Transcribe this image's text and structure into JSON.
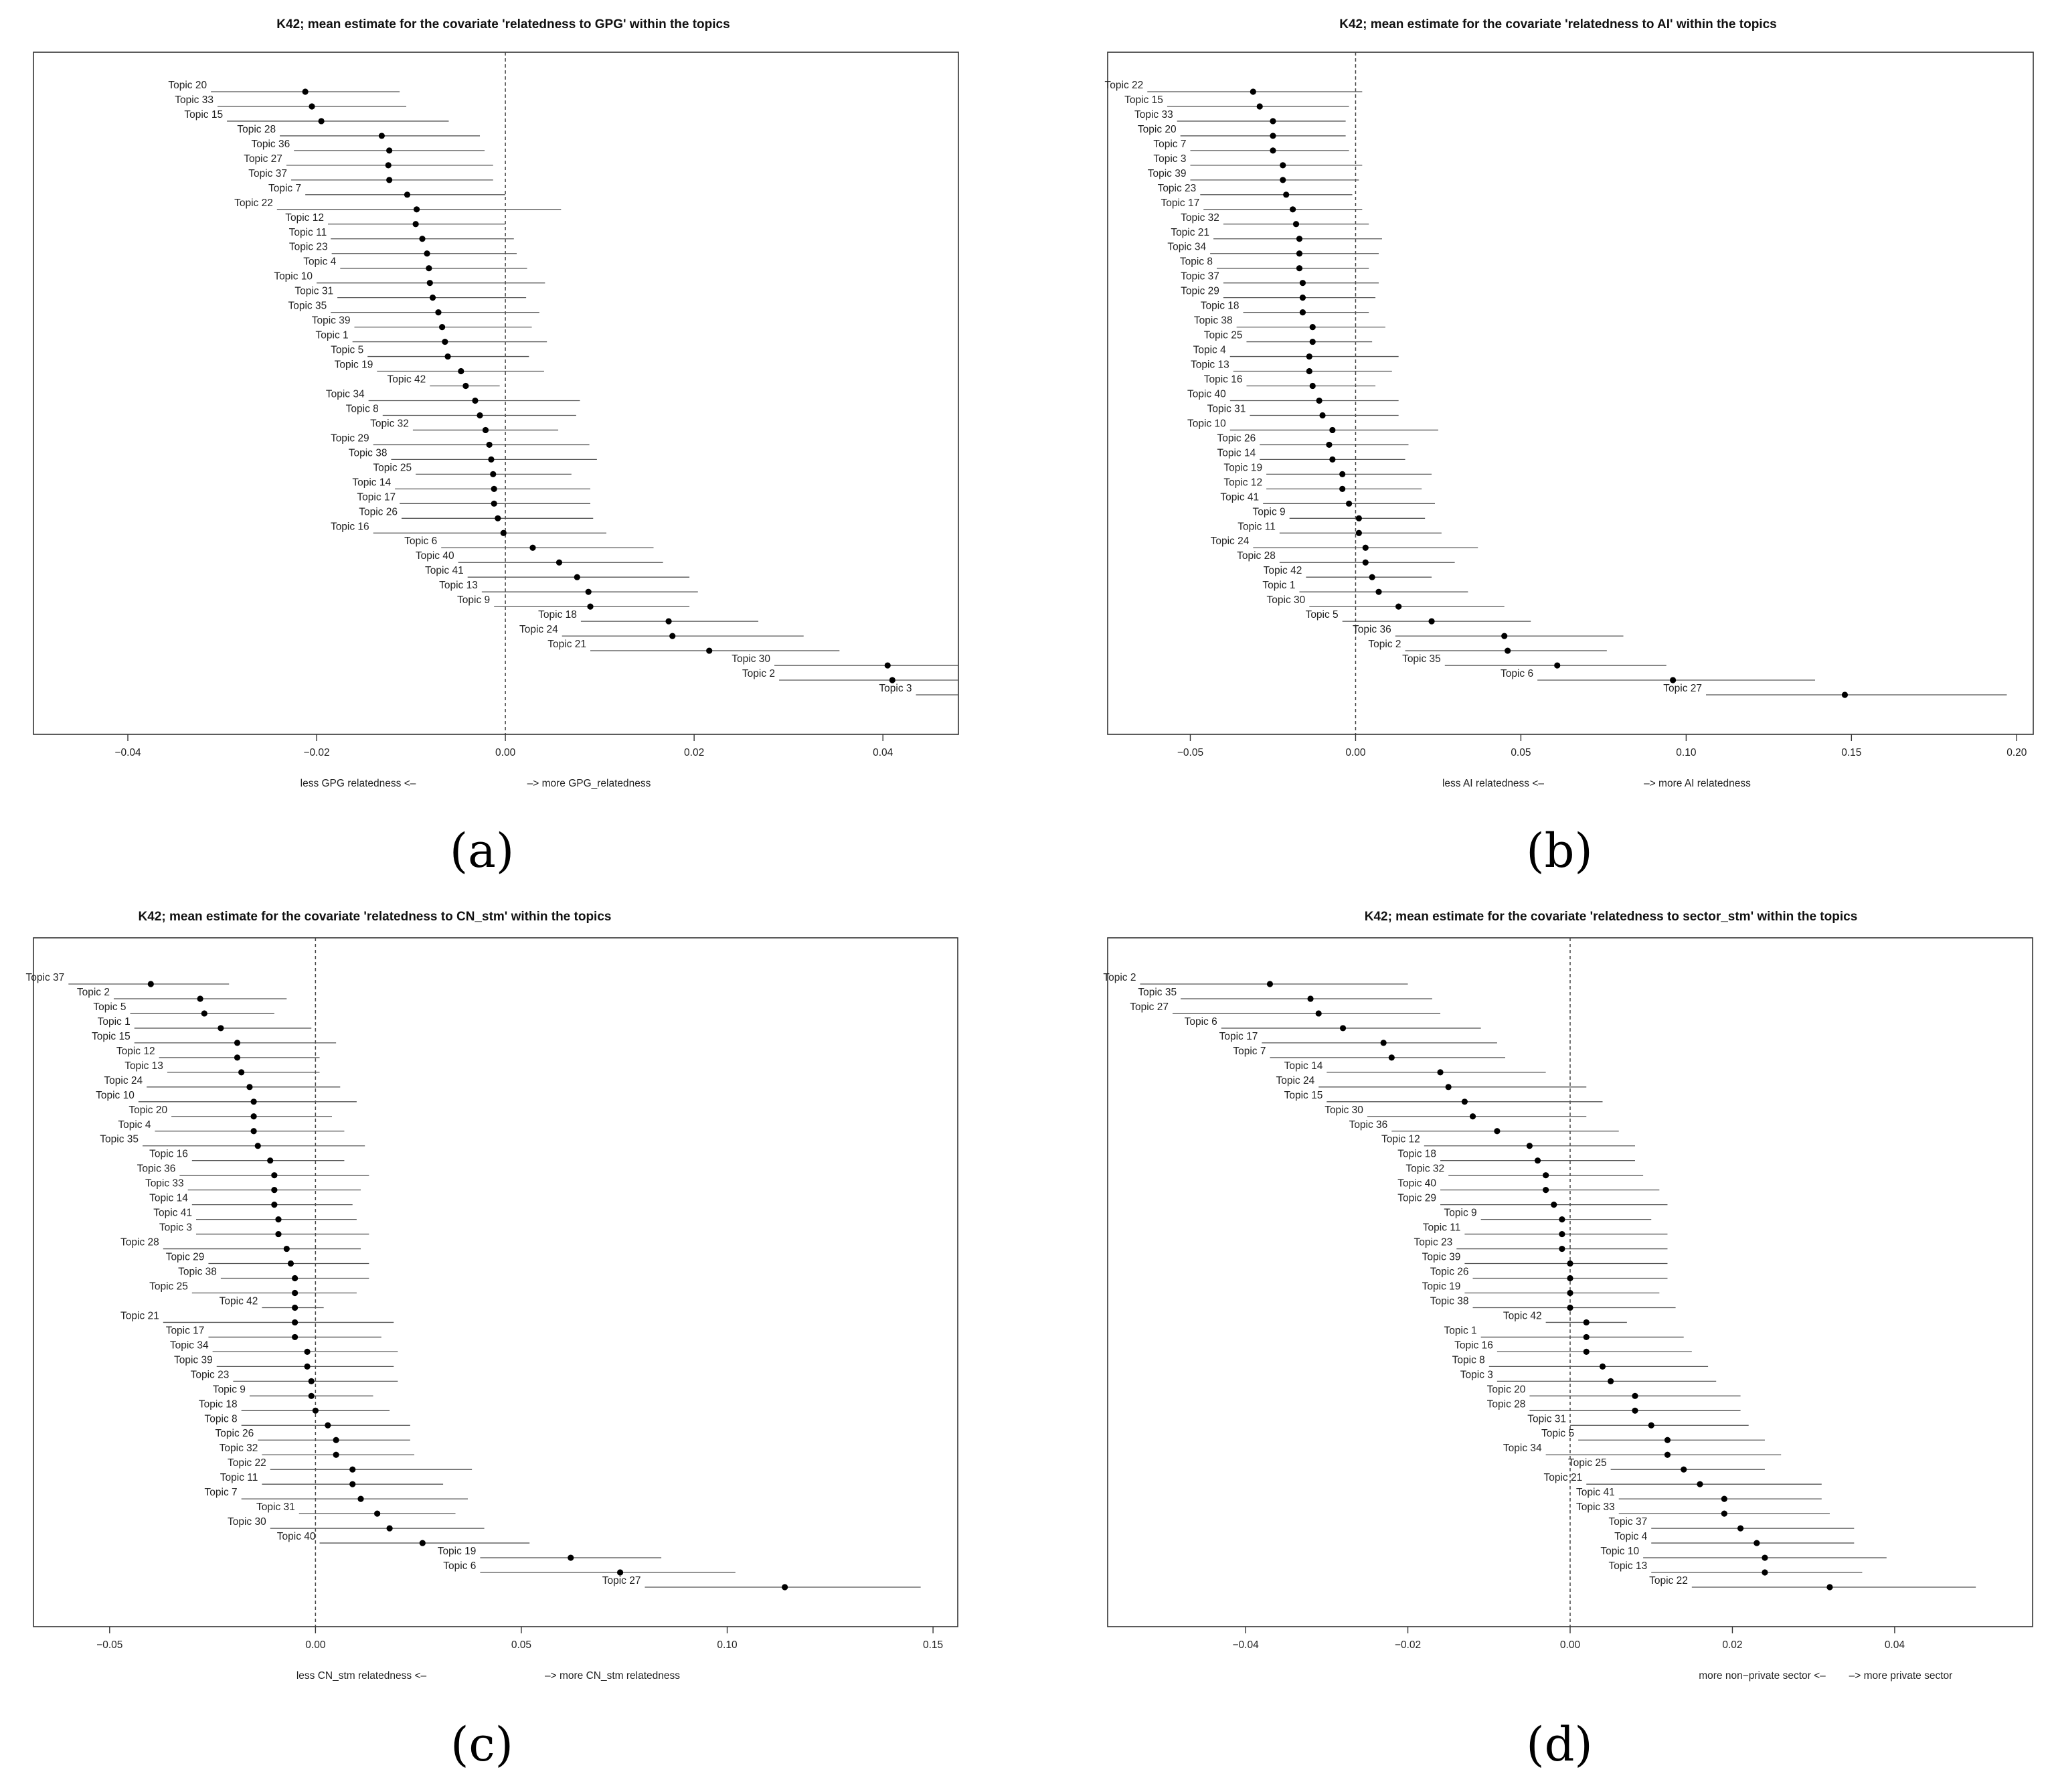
{
  "captions": [
    "(a)",
    "(b)",
    "(c)",
    "(d)"
  ],
  "chart_data": [
    {
      "type": "scatter",
      "title": "K42; mean estimate for the covariate 'relatedness to GPG' within the topics",
      "xlabel_left": "less GPG relatedness <–",
      "xlabel_right": "–> more GPG_relatedness",
      "xlim": [
        -0.05,
        0.048
      ],
      "xticks": [
        -0.04,
        -0.02,
        0.0,
        0.02,
        0.04
      ],
      "xtick_labels": [
        "−0.04",
        "−0.02",
        "0.00",
        "0.02",
        "0.04"
      ],
      "reference_line": 0,
      "labels": [
        "Topic 20",
        "Topic 33",
        "Topic 15",
        "Topic 28",
        "Topic 36",
        "Topic 27",
        "Topic 37",
        "Topic 7",
        "Topic 22",
        "Topic 12",
        "Topic 11",
        "Topic 23",
        "Topic 4",
        "Topic 10",
        "Topic 31",
        "Topic 35",
        "Topic 39",
        "Topic 1",
        "Topic 5",
        "Topic 19",
        "Topic 42",
        "Topic 34",
        "Topic 8",
        "Topic 32",
        "Topic 29",
        "Topic 38",
        "Topic 25",
        "Topic 14",
        "Topic 17",
        "Topic 26",
        "Topic 16",
        "Topic 6",
        "Topic 40",
        "Topic 41",
        "Topic 13",
        "Topic 9",
        "Topic 18",
        "Topic 24",
        "Topic 21",
        "Topic 30",
        "Topic 2",
        "Topic 3"
      ],
      "estimates": [
        -0.0212,
        -0.0205,
        -0.0195,
        -0.0131,
        -0.0123,
        -0.0124,
        -0.0123,
        -0.0104,
        -0.0094,
        -0.0095,
        -0.0088,
        -0.0083,
        -0.0081,
        -0.008,
        -0.0077,
        -0.0071,
        -0.0067,
        -0.0064,
        -0.0061,
        -0.0047,
        -0.0042,
        -0.0032,
        -0.0027,
        -0.0021,
        -0.0017,
        -0.0015,
        -0.0013,
        -0.0012,
        -0.0012,
        -0.0008,
        -0.0002,
        0.0029,
        0.0057,
        0.0076,
        0.0088,
        0.009,
        0.0173,
        0.0177,
        0.0216,
        0.0405,
        0.041,
        0.0495
      ],
      "lower": [
        -0.0312,
        -0.0305,
        -0.0295,
        -0.0239,
        -0.0224,
        -0.0232,
        -0.0227,
        -0.0212,
        -0.0242,
        -0.0188,
        -0.0185,
        -0.0184,
        -0.0175,
        -0.02,
        -0.0178,
        -0.0185,
        -0.016,
        -0.0162,
        -0.0146,
        -0.0136,
        -0.008,
        -0.0145,
        -0.013,
        -0.0098,
        -0.014,
        -0.0121,
        -0.0095,
        -0.0117,
        -0.0112,
        -0.011,
        -0.014,
        -0.0068,
        -0.005,
        -0.004,
        -0.0025,
        -0.0012,
        0.008,
        0.006,
        0.009,
        0.0285,
        0.029,
        0.0435
      ],
      "upper": [
        -0.0112,
        -0.0105,
        -0.006,
        -0.0027,
        -0.0022,
        -0.0013,
        -0.0013,
        0.0,
        0.0059,
        0.0,
        0.0009,
        0.0012,
        0.0023,
        0.0042,
        0.0022,
        0.0036,
        0.0028,
        0.0044,
        0.0025,
        0.0041,
        -0.0006,
        0.0079,
        0.0075,
        0.0056,
        0.0089,
        0.0097,
        0.007,
        0.009,
        0.009,
        0.0093,
        0.0107,
        0.0157,
        0.0167,
        0.0195,
        0.0204,
        0.0195,
        0.0268,
        0.0316,
        0.0354,
        0.05,
        0.05,
        0.05
      ]
    },
    {
      "type": "scatter",
      "title": "K42; mean estimate for the covariate 'relatedness to AI' within the topics",
      "xlabel_left": "less AI relatedness <–",
      "xlabel_right": "–> more AI  relatedness",
      "xlim": [
        -0.075,
        0.205
      ],
      "xticks": [
        -0.05,
        0.0,
        0.05,
        0.1,
        0.15,
        0.2
      ],
      "xtick_labels": [
        "−0.05",
        "0.00",
        "0.05",
        "0.10",
        "0.15",
        "0.20"
      ],
      "reference_line": 0,
      "labels": [
        "Topic 22",
        "Topic 15",
        "Topic 33",
        "Topic 20",
        "Topic 7",
        "Topic 3",
        "Topic 39",
        "Topic 23",
        "Topic 17",
        "Topic 32",
        "Topic 21",
        "Topic 34",
        "Topic 8",
        "Topic 37",
        "Topic 29",
        "Topic 18",
        "Topic 38",
        "Topic 25",
        "Topic 4",
        "Topic 13",
        "Topic 16",
        "Topic 40",
        "Topic 31",
        "Topic 10",
        "Topic 26",
        "Topic 14",
        "Topic 19",
        "Topic 12",
        "Topic 41",
        "Topic 9",
        "Topic 11",
        "Topic 24",
        "Topic 28",
        "Topic 42",
        "Topic 1",
        "Topic 30",
        "Topic 5",
        "Topic 36",
        "Topic 2",
        "Topic 35",
        "Topic 6",
        "Topic 27"
      ],
      "estimates": [
        -0.031,
        -0.029,
        -0.025,
        -0.025,
        -0.025,
        -0.022,
        -0.022,
        -0.021,
        -0.019,
        -0.018,
        -0.017,
        -0.017,
        -0.017,
        -0.016,
        -0.016,
        -0.016,
        -0.013,
        -0.013,
        -0.014,
        -0.014,
        -0.013,
        -0.011,
        -0.01,
        -0.007,
        -0.008,
        -0.007,
        -0.004,
        -0.004,
        -0.002,
        0.001,
        0.001,
        0.003,
        0.003,
        0.005,
        0.007,
        0.013,
        0.023,
        0.045,
        0.046,
        0.061,
        0.096,
        0.148
      ],
      "lower": [
        -0.063,
        -0.057,
        -0.054,
        -0.053,
        -0.05,
        -0.05,
        -0.05,
        -0.047,
        -0.046,
        -0.04,
        -0.043,
        -0.044,
        -0.042,
        -0.04,
        -0.04,
        -0.034,
        -0.036,
        -0.033,
        -0.038,
        -0.037,
        -0.033,
        -0.038,
        -0.032,
        -0.038,
        -0.029,
        -0.029,
        -0.027,
        -0.027,
        -0.028,
        -0.02,
        -0.023,
        -0.031,
        -0.023,
        -0.015,
        -0.017,
        -0.014,
        -0.004,
        0.012,
        0.015,
        0.027,
        0.055,
        0.106
      ],
      "upper": [
        0.002,
        -0.002,
        -0.003,
        -0.003,
        -0.002,
        0.002,
        0.001,
        -0.001,
        0.002,
        0.004,
        0.008,
        0.007,
        0.004,
        0.007,
        0.006,
        0.004,
        0.009,
        0.005,
        0.013,
        0.011,
        0.006,
        0.013,
        0.013,
        0.025,
        0.016,
        0.015,
        0.023,
        0.02,
        0.024,
        0.021,
        0.026,
        0.037,
        0.03,
        0.023,
        0.034,
        0.045,
        0.053,
        0.081,
        0.076,
        0.094,
        0.139,
        0.197
      ]
    },
    {
      "type": "scatter",
      "title": "K42; mean estimate for the covariate 'relatedness to CN_stm' within the topics",
      "xlabel_left": "less CN_stm relatedness <–",
      "xlabel_right": "–> more CN_stm  relatedness",
      "xlim": [
        -0.0685,
        0.156
      ],
      "xticks": [
        -0.05,
        0.0,
        0.05,
        0.1,
        0.15
      ],
      "xtick_labels": [
        "−0.05",
        "0.00",
        "0.05",
        "0.10",
        "0.15"
      ],
      "reference_line": 0,
      "labels": [
        "Topic 37",
        "Topic 2",
        "Topic 5",
        "Topic 1",
        "Topic 15",
        "Topic 12",
        "Topic 13",
        "Topic 24",
        "Topic 10",
        "Topic 20",
        "Topic 4",
        "Topic 35",
        "Topic 16",
        "Topic 36",
        "Topic 33",
        "Topic 14",
        "Topic 41",
        "Topic 3",
        "Topic 28",
        "Topic 29",
        "Topic 38",
        "Topic 25",
        "Topic 42",
        "Topic 21",
        "Topic 17",
        "Topic 34",
        "Topic 39",
        "Topic 23",
        "Topic 9",
        "Topic 18",
        "Topic 8",
        "Topic 26",
        "Topic 32",
        "Topic 22",
        "Topic 11",
        "Topic 7",
        "Topic 31",
        "Topic 30",
        "Topic 40",
        "Topic 19",
        "Topic 6",
        "Topic 27"
      ],
      "estimates": [
        -0.04,
        -0.028,
        -0.027,
        -0.023,
        -0.019,
        -0.019,
        -0.018,
        -0.016,
        -0.015,
        -0.015,
        -0.015,
        -0.014,
        -0.011,
        -0.01,
        -0.01,
        -0.01,
        -0.009,
        -0.009,
        -0.007,
        -0.006,
        -0.005,
        -0.005,
        -0.005,
        -0.005,
        -0.005,
        -0.002,
        -0.002,
        -0.001,
        -0.001,
        0.0,
        0.003,
        0.005,
        0.005,
        0.009,
        0.009,
        0.011,
        0.015,
        0.018,
        0.026,
        0.062,
        0.074,
        0.114
      ],
      "lower": [
        -0.06,
        -0.049,
        -0.045,
        -0.044,
        -0.044,
        -0.038,
        -0.036,
        -0.041,
        -0.043,
        -0.035,
        -0.039,
        -0.042,
        -0.03,
        -0.033,
        -0.031,
        -0.03,
        -0.029,
        -0.029,
        -0.037,
        -0.026,
        -0.023,
        -0.03,
        -0.013,
        -0.037,
        -0.026,
        -0.025,
        -0.024,
        -0.02,
        -0.016,
        -0.018,
        -0.018,
        -0.014,
        -0.013,
        -0.011,
        -0.013,
        -0.018,
        -0.004,
        -0.011,
        0.001,
        0.04,
        0.04,
        0.08
      ],
      "upper": [
        -0.021,
        -0.007,
        -0.01,
        -0.001,
        0.005,
        0.001,
        0.001,
        0.006,
        0.01,
        0.004,
        0.007,
        0.012,
        0.007,
        0.013,
        0.011,
        0.009,
        0.01,
        0.013,
        0.011,
        0.013,
        0.013,
        0.01,
        0.002,
        0.019,
        0.016,
        0.02,
        0.019,
        0.02,
        0.014,
        0.018,
        0.023,
        0.023,
        0.024,
        0.038,
        0.031,
        0.037,
        0.034,
        0.041,
        0.052,
        0.084,
        0.102,
        0.147
      ]
    },
    {
      "type": "scatter",
      "title": "K42; mean estimate for the covariate 'relatedness to sector_stm' within the topics",
      "xlabel_left": "more non−private sector <–",
      "xlabel_right": "–> more private sector",
      "xlim": [
        -0.057,
        0.057
      ],
      "xticks": [
        -0.04,
        -0.02,
        0.0,
        0.02,
        0.04
      ],
      "xtick_labels": [
        "−0.04",
        "−0.02",
        "0.00",
        "0.02",
        "0.04"
      ],
      "reference_line": 0,
      "labels": [
        "Topic 2",
        "Topic 35",
        "Topic 27",
        "Topic 6",
        "Topic 17",
        "Topic 7",
        "Topic 14",
        "Topic 24",
        "Topic 15",
        "Topic 30",
        "Topic 36",
        "Topic 12",
        "Topic 18",
        "Topic 32",
        "Topic 40",
        "Topic 29",
        "Topic 9",
        "Topic 11",
        "Topic 23",
        "Topic 39",
        "Topic 26",
        "Topic 19",
        "Topic 38",
        "Topic 42",
        "Topic 1",
        "Topic 16",
        "Topic 8",
        "Topic 3",
        "Topic 20",
        "Topic 28",
        "Topic 31",
        "Topic 5",
        "Topic 34",
        "Topic 25",
        "Topic 21",
        "Topic 41",
        "Topic 33",
        "Topic 37",
        "Topic 4",
        "Topic 10",
        "Topic 13",
        "Topic 22"
      ],
      "estimates": [
        -0.037,
        -0.032,
        -0.031,
        -0.028,
        -0.023,
        -0.022,
        -0.016,
        -0.015,
        -0.013,
        -0.012,
        -0.009,
        -0.005,
        -0.004,
        -0.003,
        -0.003,
        -0.002,
        -0.001,
        -0.001,
        -0.001,
        0.0,
        0.0,
        0.0,
        0.0,
        0.002,
        0.002,
        0.002,
        0.004,
        0.005,
        0.008,
        0.008,
        0.01,
        0.012,
        0.012,
        0.014,
        0.016,
        0.019,
        0.019,
        0.021,
        0.023,
        0.024,
        0.024,
        0.032
      ],
      "lower": [
        -0.053,
        -0.048,
        -0.049,
        -0.043,
        -0.038,
        -0.037,
        -0.03,
        -0.031,
        -0.03,
        -0.025,
        -0.022,
        -0.018,
        -0.016,
        -0.015,
        -0.016,
        -0.016,
        -0.011,
        -0.013,
        -0.014,
        -0.013,
        -0.012,
        -0.013,
        -0.012,
        -0.003,
        -0.011,
        -0.009,
        -0.01,
        -0.009,
        -0.005,
        -0.005,
        0.0,
        0.001,
        -0.003,
        0.005,
        0.002,
        0.006,
        0.006,
        0.01,
        0.01,
        0.009,
        0.01,
        0.015
      ],
      "upper": [
        -0.02,
        -0.017,
        -0.016,
        -0.011,
        -0.009,
        -0.008,
        -0.003,
        0.002,
        0.004,
        0.002,
        0.006,
        0.008,
        0.008,
        0.009,
        0.011,
        0.012,
        0.01,
        0.012,
        0.012,
        0.012,
        0.012,
        0.011,
        0.013,
        0.007,
        0.014,
        0.015,
        0.017,
        0.018,
        0.021,
        0.021,
        0.022,
        0.024,
        0.026,
        0.024,
        0.031,
        0.031,
        0.032,
        0.035,
        0.035,
        0.039,
        0.036,
        0.05
      ]
    }
  ]
}
